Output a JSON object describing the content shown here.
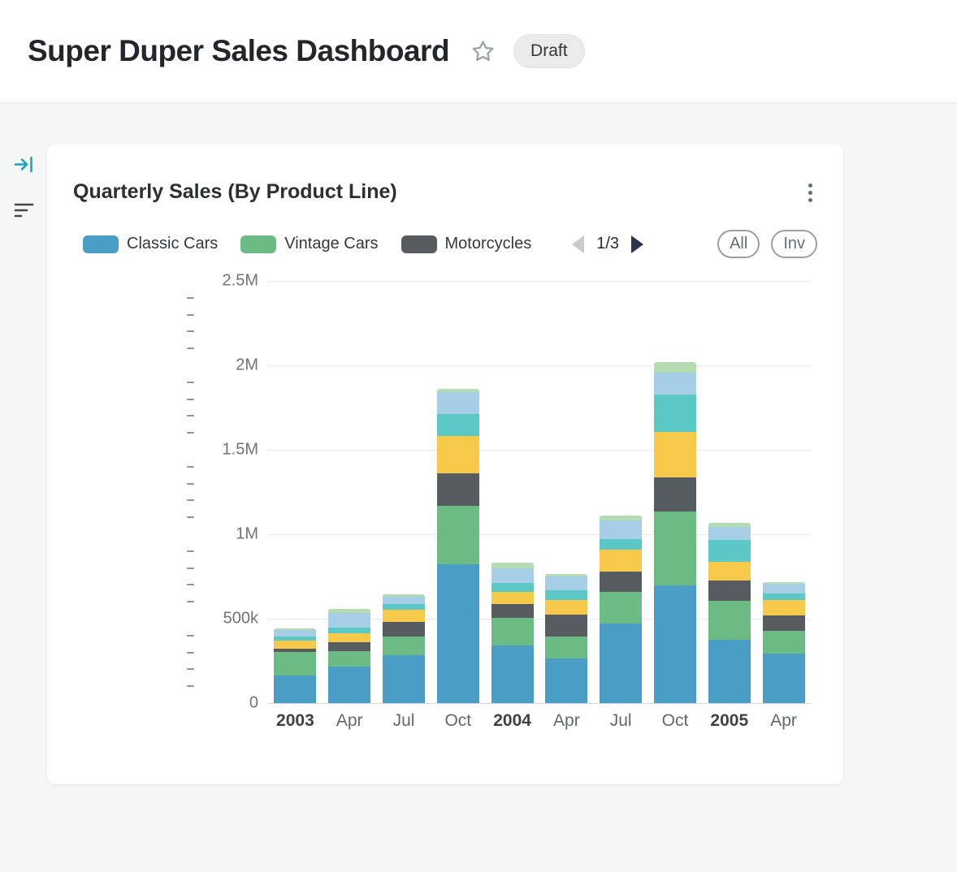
{
  "header": {
    "title": "Super Duper Sales Dashboard",
    "badge": "Draft"
  },
  "icons": {
    "star": "star-outline",
    "menu": "kebab-vertical",
    "prev": "◀",
    "next": "▶",
    "collapse": "arrow-to-bar",
    "filter": "filter-lines"
  },
  "card": {
    "title": "Quarterly Sales (By Product Line)",
    "buttons": {
      "all": "All",
      "inv": "Inv"
    }
  },
  "chart_data": {
    "type": "bar",
    "stacked": true,
    "title": "Quarterly Sales (By Product Line)",
    "categories": [
      "2003",
      "Apr",
      "Jul",
      "Oct",
      "2004",
      "Apr",
      "Jul",
      "Oct",
      "2005",
      "Apr"
    ],
    "bold_categories": [
      "2003",
      "2004",
      "2005"
    ],
    "series": [
      {
        "name": "Classic Cars",
        "color": "#4a9dc4",
        "in_legend": true,
        "values": [
          165000,
          215000,
          285000,
          820000,
          340000,
          265000,
          470000,
          695000,
          375000,
          295000
        ]
      },
      {
        "name": "Vintage Cars",
        "color": "#6cbb85",
        "in_legend": true,
        "values": [
          140000,
          95000,
          110000,
          350000,
          165000,
          130000,
          190000,
          440000,
          230000,
          135000
        ]
      },
      {
        "name": "Motorcycles",
        "color": "#575c61",
        "in_legend": true,
        "values": [
          15000,
          50000,
          85000,
          190000,
          80000,
          130000,
          120000,
          200000,
          120000,
          90000
        ]
      },
      {
        "name": "series-4-yellow",
        "color": "#f6c94a",
        "in_legend": false,
        "values": [
          50000,
          55000,
          75000,
          220000,
          75000,
          85000,
          130000,
          270000,
          110000,
          90000
        ]
      },
      {
        "name": "series-5-teal",
        "color": "#5cc8c6",
        "in_legend": false,
        "values": [
          25000,
          30000,
          30000,
          130000,
          50000,
          60000,
          60000,
          220000,
          130000,
          40000
        ]
      },
      {
        "name": "series-6-light-blue",
        "color": "#a7cee7",
        "in_legend": false,
        "values": [
          40000,
          90000,
          45000,
          130000,
          90000,
          80000,
          110000,
          130000,
          80000,
          55000
        ]
      },
      {
        "name": "series-7-light-green",
        "color": "#b3dcb2",
        "in_legend": false,
        "values": [
          10000,
          25000,
          15000,
          20000,
          30000,
          15000,
          30000,
          65000,
          25000,
          10000
        ]
      }
    ],
    "ylim": [
      0,
      2500000
    ],
    "minor_tick_step": 100000,
    "y_ticks": [
      {
        "label": "0",
        "value": 0
      },
      {
        "label": "500k",
        "value": 500000
      },
      {
        "label": "1M",
        "value": 1000000
      },
      {
        "label": "1.5M",
        "value": 1500000
      },
      {
        "label": "2M",
        "value": 2000000
      },
      {
        "label": "2.5M",
        "value": 2500000
      }
    ],
    "grid": true,
    "legend_position": "top",
    "legend_visible": [
      "Classic Cars",
      "Vintage Cars",
      "Motorcycles"
    ],
    "pagination": {
      "current": 1,
      "total": 3,
      "label": "1/3"
    }
  }
}
